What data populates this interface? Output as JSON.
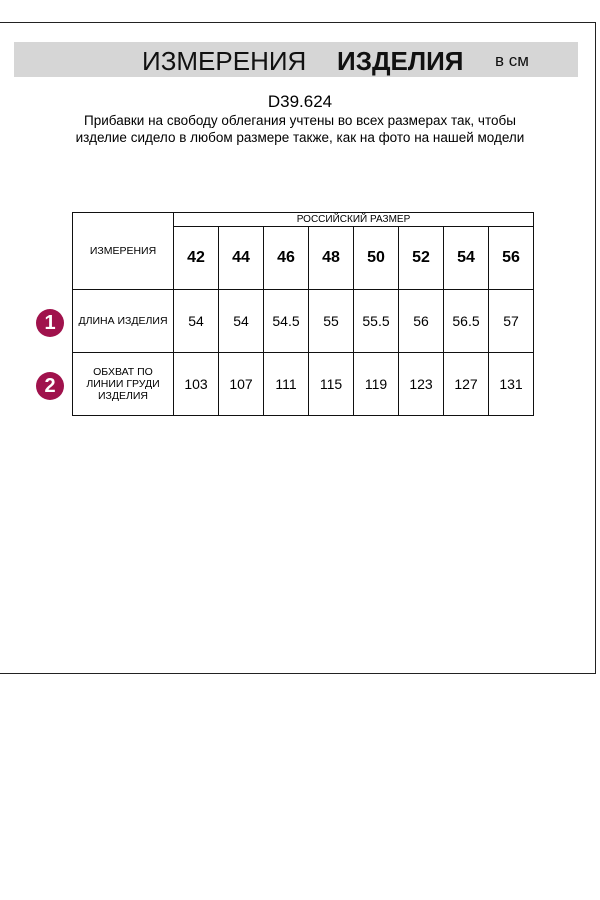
{
  "header": {
    "title_regular": "ИЗМЕРЕНИЯ",
    "title_bold": "ИЗДЕЛИЯ",
    "unit": "в см"
  },
  "product_code": "D39.624",
  "note": "Прибавки на свободу облегания учтены во всех размерах так, чтобы изделие сидело в любом размере также, как на фото на нашей модели",
  "table": {
    "corner_label": "ИЗМЕРЕНИЯ",
    "group_header": "РОССИЙСКИЙ РАЗМЕР",
    "sizes": [
      "42",
      "44",
      "46",
      "48",
      "50",
      "52",
      "54",
      "56"
    ],
    "rows": [
      {
        "badge": "1",
        "label": "ДЛИНА ИЗДЕЛИЯ",
        "values": [
          "54",
          "54",
          "54.5",
          "55",
          "55.5",
          "56",
          "56.5",
          "57"
        ]
      },
      {
        "badge": "2",
        "label": "ОБХВАТ ПО ЛИНИИ ГРУДИ ИЗДЕЛИЯ",
        "values": [
          "103",
          "107",
          "111",
          "115",
          "119",
          "123",
          "127",
          "131"
        ]
      }
    ]
  },
  "colors": {
    "badge": "#a0124c",
    "band": "#d6d6d6"
  }
}
